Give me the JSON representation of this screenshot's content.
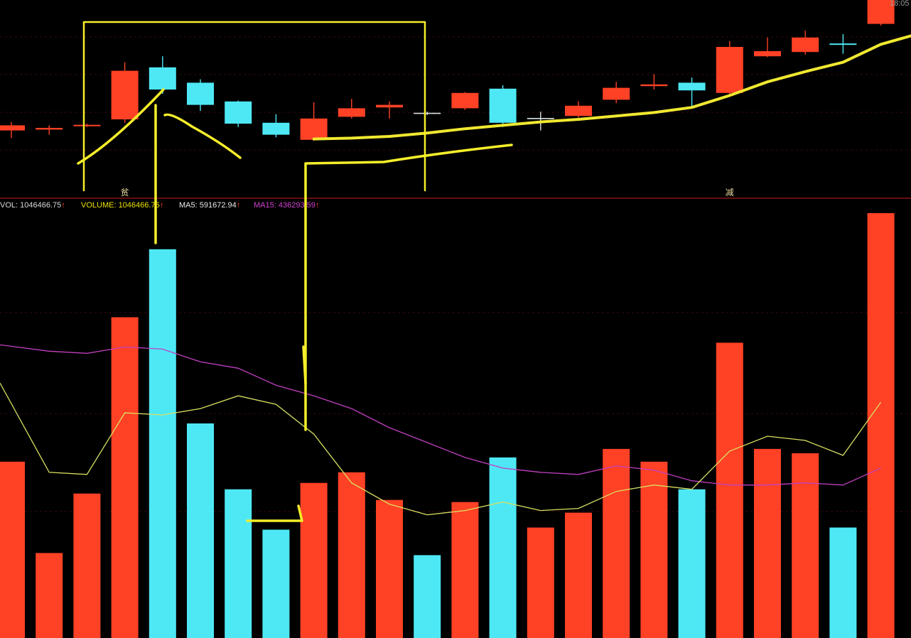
{
  "header": {
    "time_label": "18:05",
    "markers": [
      {
        "text": "贫",
        "index": 3
      },
      {
        "text": "减",
        "index": 19
      }
    ]
  },
  "indicator_bar": [
    {
      "label": "VOL: 1046466.75",
      "color": "#d8d8d8",
      "arrow": "↑"
    },
    {
      "label": "VOLUME: 1046466.75",
      "color": "#e8e000",
      "arrow": "↑"
    },
    {
      "label": "MA5: 591672.94",
      "color": "#e8e8e8",
      "arrow": "↑"
    },
    {
      "label": "MA15: 436293.59",
      "color": "#d040d0",
      "arrow": "↑"
    }
  ],
  "colors": {
    "up": "#ff4125",
    "down": "#4ee8f5",
    "doji": "#d8e0e0",
    "annotation": "#f5ee2a",
    "ma_price": "#f0e830",
    "ma5_vol": "#d8e060",
    "ma15_vol": "#c040c0",
    "separator": "#8a1010",
    "grid": "#3a0a0a"
  },
  "chart_data": [
    {
      "type": "candlestick",
      "ylim": [
        0,
        100
      ],
      "candles": [
        {
          "o": 26.5,
          "h": 28.5,
          "l": 19.0,
          "c": 23.5,
          "dir": "up"
        },
        {
          "o": 24.0,
          "h": 26.5,
          "l": 21.0,
          "c": 25.0,
          "dir": "up"
        },
        {
          "o": 26.5,
          "h": 27.5,
          "l": 25.5,
          "c": 26.8,
          "dir": "up"
        },
        {
          "o": 30.0,
          "h": 63.5,
          "l": 28.0,
          "c": 58.5,
          "dir": "up"
        },
        {
          "o": 60.5,
          "h": 67.0,
          "l": 45.0,
          "c": 47.5,
          "dir": "down"
        },
        {
          "o": 51.5,
          "h": 53.5,
          "l": 35.0,
          "c": 38.5,
          "dir": "down"
        },
        {
          "o": 40.5,
          "h": 41.0,
          "l": 25.5,
          "c": 27.5,
          "dir": "down"
        },
        {
          "o": 28.0,
          "h": 33.0,
          "l": 19.5,
          "c": 21.0,
          "dir": "down"
        },
        {
          "o": 18.0,
          "h": 40.0,
          "l": 17.5,
          "c": 30.5,
          "dir": "up"
        },
        {
          "o": 31.5,
          "h": 42.0,
          "l": 30.5,
          "c": 36.5,
          "dir": "up"
        },
        {
          "o": 37.0,
          "h": 40.5,
          "l": 30.5,
          "c": 38.5,
          "dir": "up"
        },
        {
          "o": 33.5,
          "h": 34.5,
          "l": 32.5,
          "c": 33.5,
          "dir": "doji"
        },
        {
          "o": 36.5,
          "h": 46.0,
          "l": 35.5,
          "c": 45.5,
          "dir": "up"
        },
        {
          "o": 48.0,
          "h": 50.0,
          "l": 25.5,
          "c": 28.0,
          "dir": "down"
        },
        {
          "o": 30.5,
          "h": 34.5,
          "l": 23.5,
          "c": 30.5,
          "dir": "doji"
        },
        {
          "o": 32.0,
          "h": 40.5,
          "l": 31.0,
          "c": 38.0,
          "dir": "up"
        },
        {
          "o": 41.5,
          "h": 52.0,
          "l": 39.5,
          "c": 48.5,
          "dir": "up"
        },
        {
          "o": 49.5,
          "h": 56.5,
          "l": 47.5,
          "c": 50.5,
          "dir": "up"
        },
        {
          "o": 51.5,
          "h": 54.5,
          "l": 37.5,
          "c": 47.0,
          "dir": "down"
        },
        {
          "o": 45.5,
          "h": 76.0,
          "l": 44.5,
          "c": 72.5,
          "dir": "up"
        },
        {
          "o": 67.0,
          "h": 78.0,
          "l": 66.5,
          "c": 70.0,
          "dir": "up"
        },
        {
          "o": 69.5,
          "h": 82.0,
          "l": 68.0,
          "c": 78.0,
          "dir": "up"
        },
        {
          "o": 74.5,
          "h": 80.0,
          "l": 68.5,
          "c": 74.5,
          "dir": "down"
        },
        {
          "o": 86.0,
          "h": 100.0,
          "l": 85.0,
          "c": 100.0,
          "dir": "up"
        }
      ],
      "ma_line": [
        null,
        null,
        null,
        null,
        null,
        null,
        null,
        null,
        18.5,
        19.0,
        20.0,
        22.0,
        24.5,
        26.5,
        28.5,
        30.0,
        32.0,
        34.0,
        37.0,
        44.0,
        52.0,
        58.0,
        63.5,
        74.0
      ]
    },
    {
      "type": "bar",
      "name": "VOLUME",
      "ylim": [
        0,
        100
      ],
      "values": [
        41.5,
        20.0,
        34.0,
        75.5,
        91.5,
        50.5,
        35.0,
        25.5,
        36.5,
        39.0,
        32.5,
        19.5,
        32.0,
        42.5,
        26.0,
        29.5,
        44.5,
        41.5,
        35.0,
        69.5,
        44.5,
        43.5,
        26.0,
        100.0
      ],
      "dirs": [
        "up",
        "up",
        "up",
        "up",
        "down",
        "down",
        "down",
        "down",
        "up",
        "up",
        "up",
        "down",
        "up",
        "down",
        "up",
        "up",
        "up",
        "up",
        "down",
        "up",
        "up",
        "up",
        "down",
        "up"
      ],
      "ma5": [
        60.0,
        39.0,
        38.5,
        53.0,
        52.5,
        54.0,
        57.0,
        55.0,
        48.0,
        36.5,
        31.5,
        29.0,
        30.0,
        32.0,
        30.0,
        30.5,
        34.5,
        36.0,
        35.0,
        44.0,
        47.5,
        46.5,
        43.0,
        55.5
      ],
      "ma15": [
        69.0,
        67.5,
        67.0,
        68.5,
        68.0,
        65.0,
        63.5,
        59.5,
        57.0,
        54.0,
        49.5,
        46.0,
        42.5,
        40.0,
        39.0,
        38.5,
        40.5,
        39.5,
        37.0,
        36.0,
        36.0,
        36.5,
        36.0,
        40.0
      ]
    }
  ]
}
